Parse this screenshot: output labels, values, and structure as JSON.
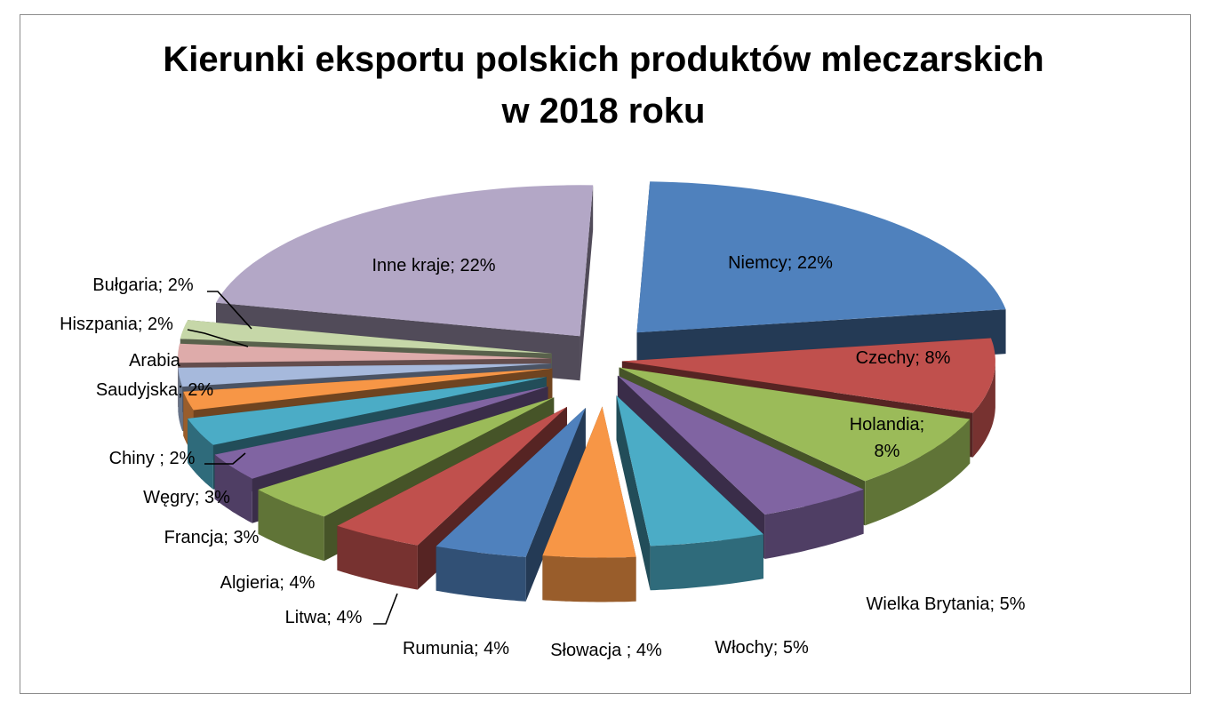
{
  "chart_data": {
    "type": "pie",
    "variant": "3d-exploded",
    "title_lines": [
      "Kierunki eksportu polskich produktów mleczarskich",
      "w 2018 roku"
    ],
    "slices": [
      {
        "name": "Niemcy",
        "value": 22,
        "label": "Niemcy; 22%",
        "color": "#4F81BD"
      },
      {
        "name": "Czechy",
        "value": 8,
        "label": "Czechy; 8%",
        "color": "#C0504D"
      },
      {
        "name": "Holandia",
        "value": 8,
        "label_lines": [
          "Holandia;",
          "8%"
        ],
        "color": "#9BBB59"
      },
      {
        "name": "Wielka Brytania",
        "value": 5,
        "label": "Wielka Brytania; 5%",
        "color": "#8064A2"
      },
      {
        "name": "Włochy",
        "value": 5,
        "label": "Włochy; 5%",
        "color": "#4BACC6"
      },
      {
        "name": "Słowacja",
        "value": 4,
        "label": "Słowacja ; 4%",
        "color": "#F79646"
      },
      {
        "name": "Rumunia",
        "value": 4,
        "label": "Rumunia; 4%",
        "color": "#4F81BD"
      },
      {
        "name": "Litwa",
        "value": 4,
        "label": "Litwa; 4%",
        "color": "#C0504D"
      },
      {
        "name": "Algieria",
        "value": 4,
        "label": "Algieria; 4%",
        "color": "#9BBB59"
      },
      {
        "name": "Francja",
        "value": 3,
        "label": "Francja; 3%",
        "color": "#8064A2"
      },
      {
        "name": "Węgry",
        "value": 3,
        "label": "Węgry; 3%",
        "color": "#4BACC6"
      },
      {
        "name": "Chiny",
        "value": 2,
        "label": "Chiny ; 2%",
        "color": "#F79646"
      },
      {
        "name": "Arabia Saudyjska",
        "value": 2,
        "label_lines": [
          "Arabia",
          "Saudyjska; 2%"
        ],
        "color": "#A6B9DC"
      },
      {
        "name": "Hiszpania",
        "value": 2,
        "label": "Hiszpania; 2%",
        "color": "#DEABAA"
      },
      {
        "name": "Bułgaria",
        "value": 2,
        "label": "Bułgaria; 2%",
        "color": "#C6D7A8"
      },
      {
        "name": "Inne kraje",
        "value": 22,
        "label": "Inne kraje; 22%",
        "color": "#B3A7C6"
      }
    ]
  }
}
